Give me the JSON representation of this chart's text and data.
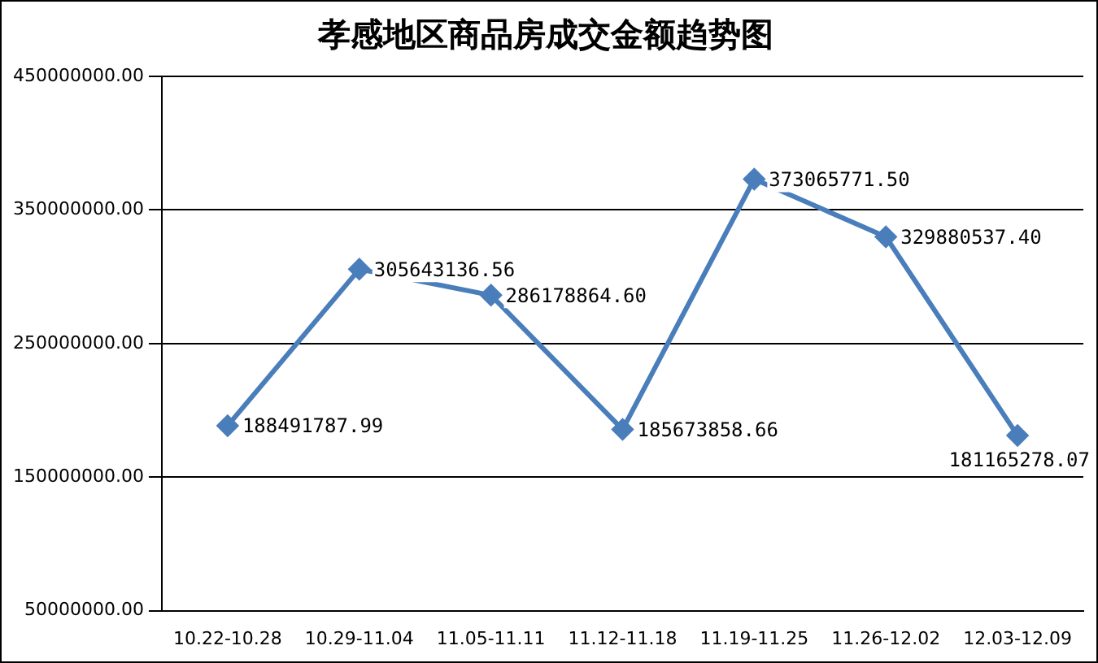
{
  "chart_data": {
    "type": "line",
    "title": "孝感地区商品房成交金额趋势图",
    "categories": [
      "10.22-10.28",
      "10.29-11.04",
      "11.05-11.11",
      "11.12-11.18",
      "11.19-11.25",
      "11.26-12.02",
      "12.03-12.09"
    ],
    "series": [
      {
        "color": "#4a7ebb",
        "values": [
          188491787.99,
          305643136.56,
          286178864.6,
          185673858.66,
          373065771.5,
          329880537.4,
          181165278.07
        ],
        "value_labels": [
          "188491787.99",
          "305643136.56",
          "286178864.60",
          "185673858.66",
          "373065771.50",
          "329880537.40",
          "181165278.07"
        ]
      }
    ],
    "ylim": [
      50000000,
      450000000
    ],
    "yticks": [
      {
        "value": 50000000,
        "label": "50000000.00"
      },
      {
        "value": 150000000,
        "label": "150000000.00"
      },
      {
        "value": 250000000,
        "label": "250000000.00"
      },
      {
        "value": 350000000,
        "label": "350000000.00"
      },
      {
        "value": 450000000,
        "label": "450000000.00"
      }
    ],
    "grid": "y",
    "legend": false,
    "marker": "diamond",
    "line_style": "solid"
  }
}
